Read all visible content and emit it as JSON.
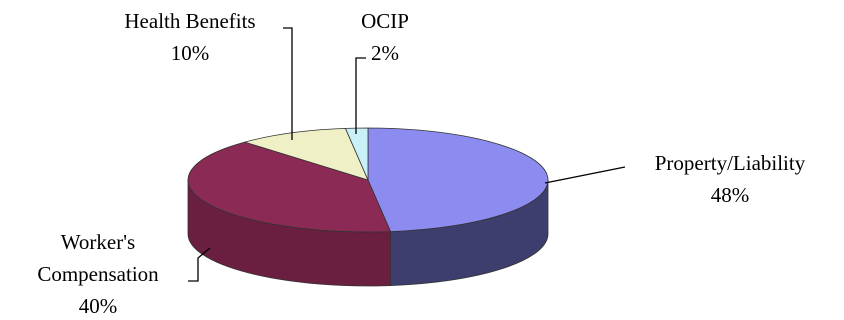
{
  "chart_data": {
    "type": "pie",
    "title": "",
    "style": "3d",
    "slices": [
      {
        "label": "Property/Liability",
        "value": 48,
        "value_label": "48%",
        "color": "#8c8cf0",
        "side_color": "#3d3d6e"
      },
      {
        "label": "Worker's Compensation",
        "label_lines": [
          "Worker's",
          "Compensation"
        ],
        "value": 40,
        "value_label": "40%",
        "color": "#8c2a56",
        "side_color": "#6a1e40"
      },
      {
        "label": "Health Benefits",
        "value": 10,
        "value_label": "10%",
        "color": "#f0f0c6",
        "side_color": "#b8b890"
      },
      {
        "label": "OCIP",
        "value": 2,
        "value_label": "2%",
        "color": "#c8f0f6",
        "side_color": "#8fb8be"
      }
    ]
  }
}
